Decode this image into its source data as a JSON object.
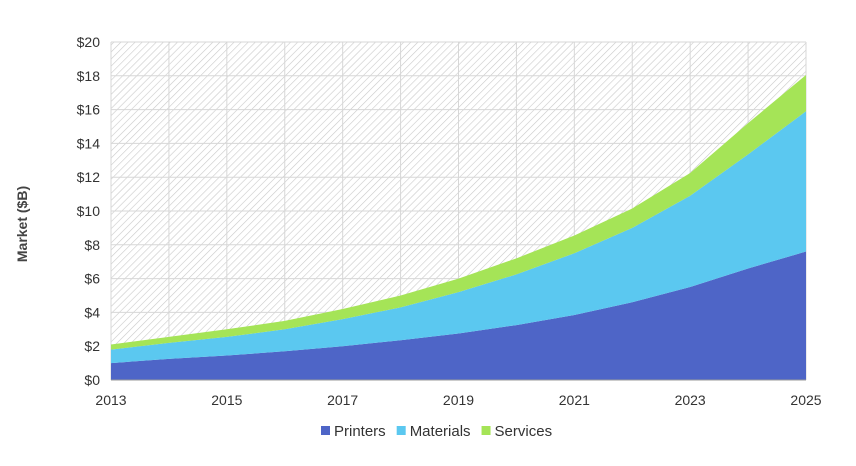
{
  "chart_data": {
    "type": "area",
    "stacked": true,
    "title": "",
    "xlabel": "",
    "ylabel": "Market ($B)",
    "x": [
      2013,
      2014,
      2015,
      2016,
      2017,
      2018,
      2019,
      2020,
      2021,
      2022,
      2023,
      2024,
      2025
    ],
    "xticks": [
      2013,
      2015,
      2017,
      2019,
      2021,
      2023,
      2025
    ],
    "xlim": [
      2013,
      2025
    ],
    "ylim": [
      0,
      20
    ],
    "yticks": [
      0,
      2,
      4,
      6,
      8,
      10,
      12,
      14,
      16,
      18,
      20
    ],
    "ytick_labels": [
      "$0",
      "$2",
      "$4",
      "$6",
      "$8",
      "$10",
      "$12",
      "$14",
      "$16",
      "$18",
      "$20"
    ],
    "grid": true,
    "legend_position": "bottom",
    "series": [
      {
        "name": "Printers",
        "color": "#4e65c7",
        "values": [
          1.0,
          1.25,
          1.45,
          1.7,
          2.0,
          2.35,
          2.75,
          3.25,
          3.85,
          4.6,
          5.5,
          6.6,
          7.6
        ]
      },
      {
        "name": "Materials",
        "color": "#5bc8f0",
        "values": [
          0.8,
          0.95,
          1.1,
          1.3,
          1.6,
          1.95,
          2.45,
          3.0,
          3.65,
          4.4,
          5.4,
          6.75,
          8.3
        ]
      },
      {
        "name": "Services",
        "color": "#a5e457",
        "values": [
          0.3,
          0.35,
          0.45,
          0.5,
          0.6,
          0.7,
          0.8,
          0.95,
          1.05,
          1.15,
          1.35,
          1.85,
          2.15
        ]
      }
    ]
  }
}
